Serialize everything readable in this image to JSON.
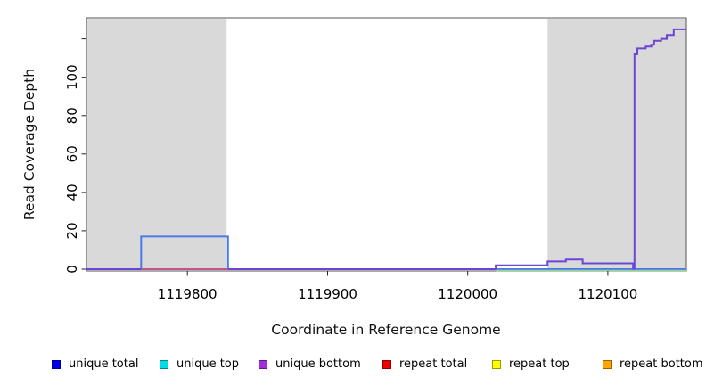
{
  "figure": {
    "background": "#ffffff",
    "y_axis_title": "Read Coverage Depth",
    "x_axis_title": "Coordinate in Reference Genome"
  },
  "chart_data": {
    "type": "line",
    "title": "",
    "xlabel": "Coordinate in Reference Genome",
    "ylabel": "Read Coverage Depth",
    "xlim": [
      1119728,
      1120156
    ],
    "ylim": [
      0,
      131
    ],
    "grid": false,
    "plot_box_color": "#555555",
    "tick_color": "#222222",
    "x_ticks": [
      1119800,
      1119900,
      1120000,
      1120100
    ],
    "y_ticks": [
      0,
      20,
      40,
      60,
      80,
      100
    ],
    "y_tick_unlabeled": 120,
    "shaded_regions": [
      {
        "x0": 1119728,
        "x1": 1119828,
        "color": "#d9d9d9"
      },
      {
        "x0": 1120057,
        "x1": 1120156,
        "color": "#d9d9d9"
      }
    ],
    "series": [
      {
        "name": "unique total",
        "color": "#4b79e8",
        "width": 2,
        "dy": 0,
        "steps": [
          [
            1119728,
            0
          ],
          [
            1119767,
            0
          ],
          [
            1119767,
            17
          ],
          [
            1119829,
            17
          ],
          [
            1119829,
            0
          ],
          [
            1120156,
            0
          ]
        ]
      },
      {
        "name": "unique bottom",
        "color": "#6b46d6",
        "width": 2,
        "dy": 0,
        "steps": [
          [
            1119728,
            0
          ],
          [
            1120020,
            0
          ],
          [
            1120020,
            2
          ],
          [
            1120057,
            2
          ],
          [
            1120057,
            4
          ],
          [
            1120070,
            4
          ],
          [
            1120070,
            5
          ],
          [
            1120082,
            5
          ],
          [
            1120082,
            3
          ],
          [
            1120118,
            3
          ],
          [
            1120118,
            0
          ],
          [
            1120119,
            0
          ],
          [
            1120119,
            112
          ],
          [
            1120121,
            112
          ],
          [
            1120121,
            115
          ],
          [
            1120127,
            115
          ],
          [
            1120127,
            116
          ],
          [
            1120131,
            116
          ],
          [
            1120131,
            117
          ],
          [
            1120133,
            117
          ],
          [
            1120133,
            119
          ],
          [
            1120138,
            119
          ],
          [
            1120138,
            120
          ],
          [
            1120142,
            120
          ],
          [
            1120142,
            122
          ],
          [
            1120147,
            122
          ],
          [
            1120147,
            125
          ],
          [
            1120156,
            125
          ]
        ]
      },
      {
        "name": "repeat total",
        "color": "#e05c76",
        "width": 1.6,
        "dy": 0,
        "steps": [
          [
            1119767,
            0
          ],
          [
            1119829,
            0
          ]
        ]
      },
      {
        "name": "unlabeled green baseline",
        "color": "#90d593",
        "width": 1.6,
        "dy": 1.5,
        "steps": [
          [
            1120020,
            0
          ],
          [
            1120156,
            0
          ]
        ]
      }
    ]
  },
  "legend": {
    "items": [
      {
        "label": "unique total",
        "color": "#0000ee"
      },
      {
        "label": "unique top",
        "color": "#00dbe8"
      },
      {
        "label": "unique bottom",
        "color": "#a22be0"
      },
      {
        "label": "repeat total",
        "color": "#f00000"
      },
      {
        "label": "repeat top",
        "color": "#ffff00"
      },
      {
        "label": "repeat bottom",
        "color": "#ffa500"
      }
    ]
  }
}
